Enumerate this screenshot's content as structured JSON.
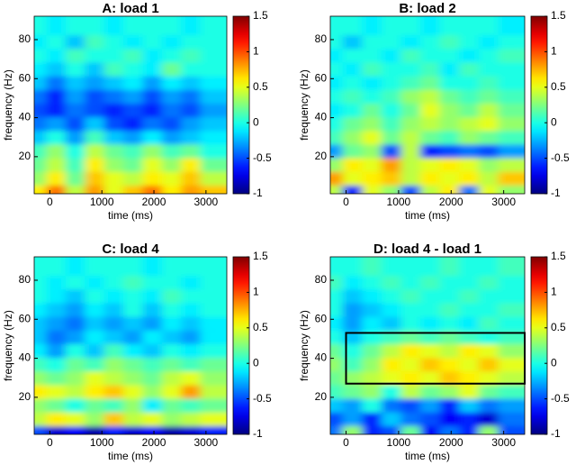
{
  "chart_data": [
    {
      "type": "heatmap",
      "title": "A: load 1",
      "xlabel": "time (ms)",
      "ylabel": "frequency (Hz)",
      "x": [
        -115,
        255,
        625,
        995,
        1365,
        1735,
        2105,
        2475,
        2845,
        3215
      ],
      "y": [
        4.5,
        11.5,
        18.5,
        25.5,
        32.5,
        39.5,
        46.5,
        53.5,
        60.5,
        67.5,
        74.5,
        81.5,
        88.5
      ],
      "z": [
        [
          0.6,
          0.9,
          0.4,
          0.8,
          0.5,
          0.7,
          0.9,
          0.6,
          0.8,
          0.7
        ],
        [
          0.3,
          0.6,
          0.2,
          0.7,
          0.5,
          0.4,
          0.6,
          0.5,
          0.7,
          0.4
        ],
        [
          0.2,
          0.4,
          0.1,
          0.6,
          0.3,
          0.2,
          0.5,
          0.3,
          0.6,
          0.2
        ],
        [
          0.1,
          0.3,
          0.0,
          0.4,
          0.2,
          0.1,
          0.3,
          0.1,
          0.2,
          0.0
        ],
        [
          -0.2,
          0.0,
          -0.3,
          0.1,
          -0.2,
          -0.3,
          -0.1,
          -0.3,
          -0.2,
          -0.1
        ],
        [
          -0.4,
          -0.3,
          -0.5,
          -0.2,
          -0.5,
          -0.6,
          -0.4,
          -0.5,
          -0.3,
          -0.2
        ],
        [
          -0.5,
          -0.6,
          -0.4,
          -0.5,
          -0.6,
          -0.5,
          -0.6,
          -0.4,
          -0.5,
          -0.3
        ],
        [
          -0.4,
          -0.6,
          -0.3,
          -0.5,
          -0.4,
          -0.3,
          -0.5,
          -0.3,
          -0.4,
          -0.2
        ],
        [
          -0.2,
          -0.4,
          -0.2,
          -0.3,
          -0.2,
          -0.1,
          -0.3,
          -0.1,
          -0.2,
          -0.1
        ],
        [
          -0.1,
          -0.2,
          0.0,
          -0.2,
          0.1,
          0.0,
          -0.1,
          0.2,
          0.0,
          0.0
        ],
        [
          0.0,
          -0.1,
          0.1,
          0.0,
          0.0,
          0.1,
          -0.1,
          0.0,
          0.1,
          0.0
        ],
        [
          -0.1,
          0.0,
          -0.2,
          0.1,
          0.0,
          -0.1,
          0.0,
          -0.1,
          0.0,
          0.0
        ],
        [
          0.0,
          -0.1,
          0.0,
          0.0,
          -0.1,
          0.0,
          0.0,
          0.0,
          -0.1,
          0.0
        ]
      ],
      "xlim": [
        -300,
        3400
      ],
      "ylim": [
        1,
        92
      ],
      "xticks": [
        0,
        1000,
        2000,
        3000
      ],
      "yticks": [
        20,
        40,
        60,
        80
      ],
      "clim": [
        -1,
        1.5
      ],
      "cticks": [
        -1,
        -0.5,
        0,
        0.5,
        1,
        1.5
      ],
      "colormap": "jet"
    },
    {
      "type": "heatmap",
      "title": "B: load 2",
      "xlabel": "time (ms)",
      "ylabel": "frequency (Hz)",
      "x": [
        -115,
        255,
        625,
        995,
        1365,
        1735,
        2105,
        2475,
        2845,
        3215
      ],
      "y": [
        4.5,
        11.5,
        18.5,
        25.5,
        32.5,
        39.5,
        46.5,
        53.5,
        60.5,
        67.5,
        74.5,
        81.5,
        88.5
      ],
      "z": [
        [
          0.4,
          -0.6,
          0.5,
          0.3,
          -0.5,
          0.4,
          0.6,
          -0.4,
          0.5,
          0.3
        ],
        [
          0.8,
          0.5,
          0.6,
          0.7,
          0.4,
          0.6,
          0.5,
          0.6,
          0.4,
          0.7
        ],
        [
          0.3,
          0.6,
          0.5,
          0.8,
          0.4,
          0.5,
          0.6,
          0.5,
          0.3,
          0.4
        ],
        [
          -0.3,
          0.2,
          0.3,
          -0.5,
          0.4,
          -0.6,
          -0.5,
          -0.4,
          -0.5,
          -0.3
        ],
        [
          0.1,
          0.3,
          0.5,
          0.2,
          0.4,
          0.2,
          0.1,
          0.3,
          0.2,
          0.1
        ],
        [
          0.0,
          0.2,
          0.3,
          0.1,
          0.3,
          0.4,
          0.3,
          0.4,
          0.5,
          0.3
        ],
        [
          -0.1,
          0.0,
          0.2,
          0.0,
          0.2,
          0.5,
          0.3,
          0.2,
          0.4,
          0.2
        ],
        [
          0.0,
          0.1,
          0.0,
          0.1,
          0.3,
          0.4,
          0.2,
          0.1,
          0.2,
          0.1
        ],
        [
          -0.1,
          0.0,
          -0.1,
          0.0,
          0.1,
          0.2,
          0.0,
          0.0,
          0.1,
          0.0
        ],
        [
          0.0,
          -0.1,
          0.1,
          0.0,
          0.0,
          0.1,
          -0.1,
          0.1,
          0.0,
          0.0
        ],
        [
          -0.1,
          0.0,
          0.0,
          -0.1,
          0.1,
          0.0,
          0.0,
          -0.1,
          0.0,
          0.1
        ],
        [
          0.0,
          -0.2,
          0.0,
          0.0,
          -0.1,
          0.0,
          0.1,
          0.0,
          -0.1,
          0.0
        ],
        [
          0.0,
          0.0,
          -0.1,
          0.0,
          0.0,
          -0.1,
          0.0,
          0.0,
          0.0,
          -0.1
        ]
      ],
      "xlim": [
        -300,
        3400
      ],
      "ylim": [
        1,
        92
      ],
      "xticks": [
        0,
        1000,
        2000,
        3000
      ],
      "yticks": [
        20,
        40,
        60,
        80
      ],
      "clim": [
        -1,
        1.5
      ],
      "cticks": [
        -1,
        -0.5,
        0,
        0.5,
        1,
        1.5
      ],
      "colormap": "jet"
    },
    {
      "type": "heatmap",
      "title": "C: load 4",
      "xlabel": "time (ms)",
      "ylabel": "frequency (Hz)",
      "x": [
        -115,
        255,
        625,
        995,
        1365,
        1735,
        2105,
        2475,
        2845,
        3215
      ],
      "y": [
        4.5,
        11.5,
        18.5,
        25.5,
        32.5,
        39.5,
        46.5,
        53.5,
        60.5,
        67.5,
        74.5,
        81.5,
        88.5
      ],
      "z": [
        [
          -0.5,
          -0.8,
          -0.7,
          -0.9,
          -0.6,
          -0.8,
          -0.7,
          -0.9,
          -0.8,
          -0.6
        ],
        [
          0.4,
          0.6,
          0.5,
          0.3,
          0.7,
          0.4,
          0.5,
          0.3,
          0.4,
          0.5
        ],
        [
          0.3,
          0.2,
          0.0,
          0.2,
          0.1,
          0.3,
          -0.1,
          0.2,
          0.1,
          0.2
        ],
        [
          0.6,
          0.5,
          0.4,
          0.6,
          0.7,
          0.5,
          0.3,
          0.5,
          0.8,
          0.4
        ],
        [
          0.3,
          0.2,
          0.3,
          0.5,
          0.4,
          0.3,
          0.2,
          0.4,
          0.5,
          0.3
        ],
        [
          0.1,
          0.0,
          0.2,
          0.1,
          0.3,
          0.2,
          0.1,
          0.2,
          0.1,
          0.2
        ],
        [
          -0.1,
          -0.3,
          0.0,
          -0.2,
          0.1,
          -0.1,
          -0.2,
          0.0,
          -0.1,
          0.0
        ],
        [
          -0.2,
          -0.4,
          -0.3,
          -0.1,
          -0.2,
          -0.3,
          -0.1,
          -0.2,
          -0.3,
          -0.1
        ],
        [
          -0.2,
          -0.3,
          -0.4,
          -0.2,
          -0.3,
          -0.2,
          -0.3,
          -0.1,
          -0.2,
          -0.1
        ],
        [
          -0.1,
          -0.2,
          -0.3,
          -0.1,
          -0.2,
          0.0,
          -0.2,
          0.0,
          -0.1,
          0.0
        ],
        [
          0.0,
          -0.1,
          -0.2,
          0.0,
          -0.1,
          0.0,
          -0.1,
          0.1,
          0.0,
          0.0
        ],
        [
          0.0,
          -0.1,
          0.0,
          -0.1,
          0.0,
          0.1,
          0.0,
          0.0,
          -0.1,
          0.0
        ],
        [
          0.0,
          0.0,
          -0.1,
          0.0,
          0.0,
          0.0,
          -0.1,
          0.0,
          0.0,
          0.0
        ]
      ],
      "xlim": [
        -300,
        3400
      ],
      "ylim": [
        1,
        92
      ],
      "xticks": [
        0,
        1000,
        2000,
        3000
      ],
      "yticks": [
        20,
        40,
        60,
        80
      ],
      "clim": [
        -1,
        1.5
      ],
      "cticks": [
        -1,
        -0.5,
        0,
        0.5,
        1,
        1.5
      ],
      "colormap": "jet"
    },
    {
      "type": "heatmap",
      "title": "D: load 4 - load 1",
      "xlabel": "time (ms)",
      "ylabel": "frequency (Hz)",
      "x": [
        -115,
        255,
        625,
        995,
        1365,
        1735,
        2105,
        2475,
        2845,
        3215
      ],
      "y": [
        4.5,
        11.5,
        18.5,
        25.5,
        32.5,
        39.5,
        46.5,
        53.5,
        60.5,
        67.5,
        74.5,
        81.5,
        88.5
      ],
      "z": [
        [
          -0.4,
          0.3,
          -0.6,
          -0.5,
          0.2,
          -0.7,
          -0.4,
          -0.6,
          0.3,
          -0.5
        ],
        [
          -0.5,
          -0.3,
          -0.6,
          -0.2,
          -0.4,
          -0.5,
          -0.7,
          -0.6,
          -0.8,
          -0.4
        ],
        [
          -0.2,
          -0.3,
          0.0,
          -0.4,
          -0.5,
          -0.3,
          -0.6,
          -0.2,
          -0.4,
          -0.3
        ],
        [
          0.1,
          0.2,
          0.3,
          0.0,
          0.4,
          0.2,
          0.3,
          0.5,
          0.2,
          0.1
        ],
        [
          0.2,
          0.3,
          0.4,
          0.5,
          0.6,
          0.5,
          0.7,
          0.6,
          0.5,
          0.4
        ],
        [
          0.3,
          0.1,
          0.3,
          0.6,
          0.5,
          0.7,
          0.6,
          0.5,
          0.7,
          0.5
        ],
        [
          0.2,
          0.0,
          0.2,
          0.4,
          0.6,
          0.5,
          0.4,
          0.6,
          0.5,
          0.3
        ],
        [
          0.0,
          -0.2,
          0.0,
          0.1,
          0.2,
          0.1,
          0.2,
          0.1,
          0.0,
          0.1
        ],
        [
          -0.1,
          -0.3,
          -0.1,
          -0.2,
          0.0,
          -0.1,
          0.0,
          -0.1,
          0.1,
          0.0
        ],
        [
          0.0,
          -0.3,
          -0.2,
          -0.1,
          0.0,
          0.0,
          0.1,
          0.0,
          0.0,
          0.1
        ],
        [
          0.0,
          -0.2,
          -0.1,
          0.0,
          0.1,
          0.0,
          0.0,
          0.1,
          0.0,
          0.0
        ],
        [
          0.1,
          -0.1,
          0.0,
          0.1,
          0.0,
          0.1,
          0.0,
          0.0,
          0.1,
          0.0
        ],
        [
          0.0,
          0.0,
          0.1,
          0.0,
          0.0,
          0.0,
          0.1,
          0.0,
          0.0,
          0.1
        ]
      ],
      "xlim": [
        -300,
        3400
      ],
      "ylim": [
        1,
        92
      ],
      "xticks": [
        0,
        1000,
        2000,
        3000
      ],
      "yticks": [
        20,
        40,
        60,
        80
      ],
      "clim": [
        -1,
        1.5
      ],
      "cticks": [
        -1,
        -0.5,
        0,
        0.5,
        1,
        1.5
      ],
      "colormap": "jet",
      "box": {
        "x": [
          0,
          3400
        ],
        "y": [
          27,
          53
        ]
      }
    }
  ]
}
